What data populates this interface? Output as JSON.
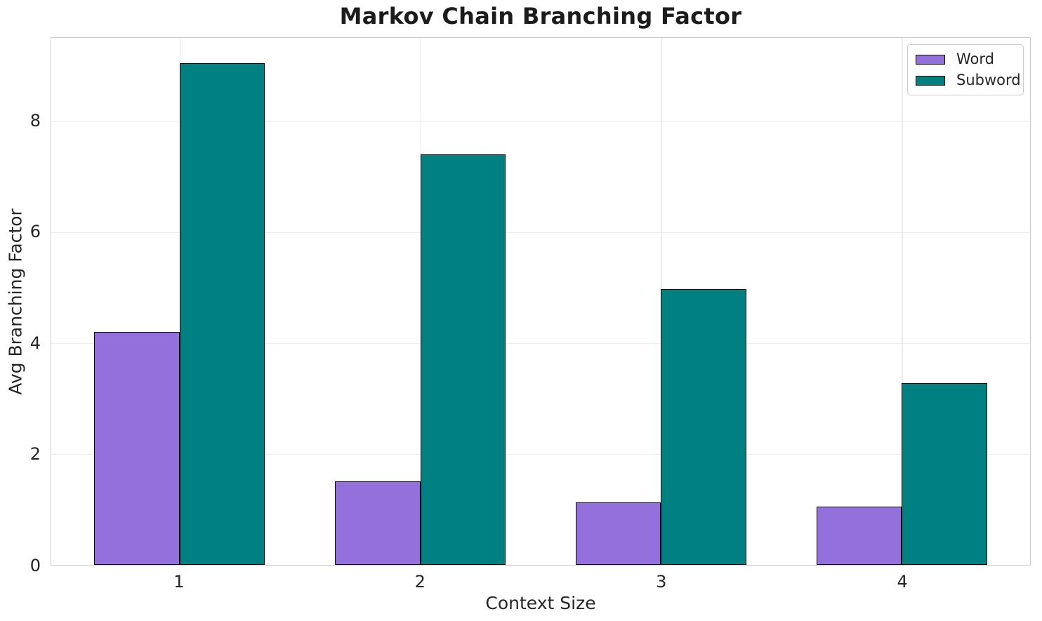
{
  "chart_data": {
    "type": "bar",
    "title": "Markov Chain Branching Factor",
    "xlabel": "Context Size",
    "ylabel": "Avg Branching Factor",
    "categories": [
      "1",
      "2",
      "3",
      "4"
    ],
    "series": [
      {
        "name": "Word",
        "color": "#9370DB",
        "values": [
          4.2,
          1.5,
          1.12,
          1.05
        ]
      },
      {
        "name": "Subword",
        "color": "#008080",
        "values": [
          9.05,
          7.4,
          4.97,
          3.28
        ]
      }
    ],
    "ylim": [
      0,
      9.5
    ],
    "yticks": [
      0,
      2,
      4,
      6,
      8
    ],
    "grid": true,
    "legend_position": "upper right",
    "bar_edge_color": "#0a0a0a",
    "grid_color": "#ececec",
    "spine_color": "#cccccc",
    "text_color": "#262626",
    "title_color": "#1c1c1c"
  }
}
